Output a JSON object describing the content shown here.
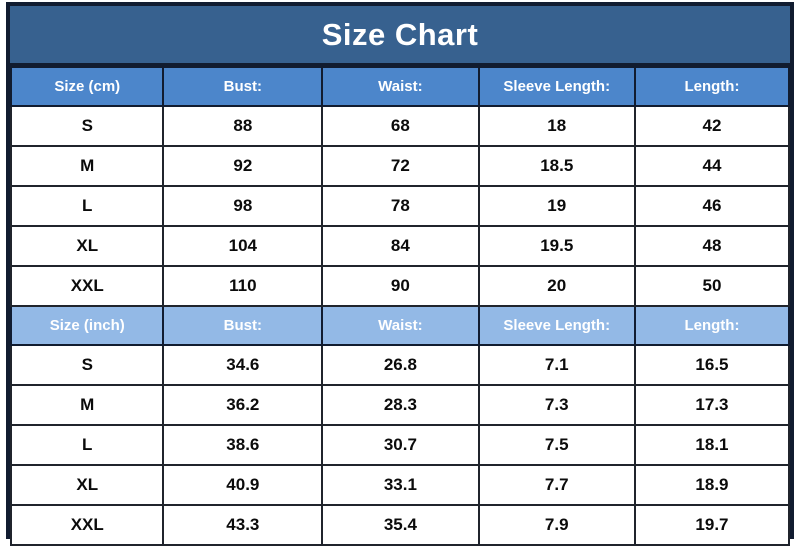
{
  "header": {
    "title": "Size Chart"
  },
  "colors": {
    "title_bg": "#37618F",
    "cm_header_bg": "#4C86CB",
    "inch_header_bg": "#93B9E6",
    "frame_border": "#111C30",
    "cell_border": "#20242C",
    "header_text": "#FFFFFF",
    "cell_text": "#0B0B0B"
  },
  "chart_data": [
    {
      "type": "table",
      "title": "Size Chart",
      "unit": "cm",
      "columns": [
        "Size (cm)",
        "Bust:",
        "Waist:",
        "Sleeve Length:",
        "Length:"
      ],
      "rows": [
        [
          "S",
          "88",
          "68",
          "18",
          "42"
        ],
        [
          "M",
          "92",
          "72",
          "18.5",
          "44"
        ],
        [
          "L",
          "98",
          "78",
          "19",
          "46"
        ],
        [
          "XL",
          "104",
          "84",
          "19.5",
          "48"
        ],
        [
          "XXL",
          "110",
          "90",
          "20",
          "50"
        ]
      ]
    },
    {
      "type": "table",
      "title": "Size Chart",
      "unit": "inch",
      "columns": [
        "Size (inch)",
        "Bust:",
        "Waist:",
        "Sleeve Length:",
        "Length:"
      ],
      "rows": [
        [
          "S",
          "34.6",
          "26.8",
          "7.1",
          "16.5"
        ],
        [
          "M",
          "36.2",
          "28.3",
          "7.3",
          "17.3"
        ],
        [
          "L",
          "38.6",
          "30.7",
          "7.5",
          "18.1"
        ],
        [
          "XL",
          "40.9",
          "33.1",
          "7.7",
          "18.9"
        ],
        [
          "XXL",
          "43.3",
          "35.4",
          "7.9",
          "19.7"
        ]
      ]
    }
  ]
}
